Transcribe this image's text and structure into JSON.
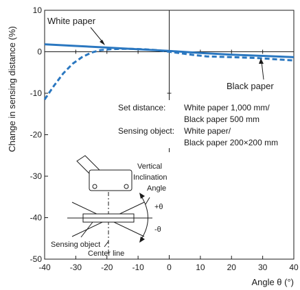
{
  "chart_data": {
    "type": "line",
    "xlabel": "Angle θ (°)",
    "ylabel": "Change in sensing distance (%)",
    "xlim": [
      -40,
      40
    ],
    "ylim": [
      -50,
      10
    ],
    "xticks": [
      -40,
      -30,
      -20,
      -10,
      0,
      10,
      20,
      30,
      40
    ],
    "yticks": [
      10,
      0,
      -10,
      -20,
      -30,
      -40,
      -50
    ],
    "grid": "axes at 0 only",
    "series": [
      {
        "name": "White paper",
        "style": "solid",
        "color": "#2a77c0",
        "x": [
          -40,
          -30,
          -20,
          -10,
          0,
          10,
          20,
          30,
          40
        ],
        "y": [
          1.8,
          1.4,
          1.0,
          0.6,
          0.2,
          -0.3,
          -0.7,
          -1.0,
          -1.3
        ]
      },
      {
        "name": "Black paper",
        "style": "dashed",
        "color": "#2a77c0",
        "x": [
          -40,
          -37,
          -34,
          -31,
          -28,
          -25,
          -22,
          -19,
          -16,
          -12,
          -8,
          -4,
          0,
          4,
          8,
          12,
          16,
          20,
          24,
          28,
          32,
          36,
          40
        ],
        "y": [
          -11.5,
          -8.2,
          -5.2,
          -2.9,
          -1.3,
          -0.2,
          0.4,
          0.6,
          0.7,
          0.7,
          0.6,
          0.4,
          0.0,
          -0.4,
          -0.8,
          -1.1,
          -1.2,
          -1.3,
          -1.4,
          -1.5,
          -1.7,
          -1.9,
          -2.1
        ]
      }
    ],
    "annotations": {
      "white_label": "White paper",
      "black_label": "Black paper",
      "set_distance_label": "Set distance:",
      "set_distance_line1": "White paper 1,000 mm/",
      "set_distance_line2": "Black paper  500 mm",
      "object_label": "Sensing object:",
      "object_line1": "White paper/",
      "object_line2": "Black paper 200×200 mm",
      "vertical": "Vertical",
      "inclination": "Inclination",
      "angle": "Angle",
      "plus_theta": "+θ",
      "minus_theta": "-θ",
      "sensing_object": "Sensing object",
      "center_line": "Center line"
    }
  }
}
